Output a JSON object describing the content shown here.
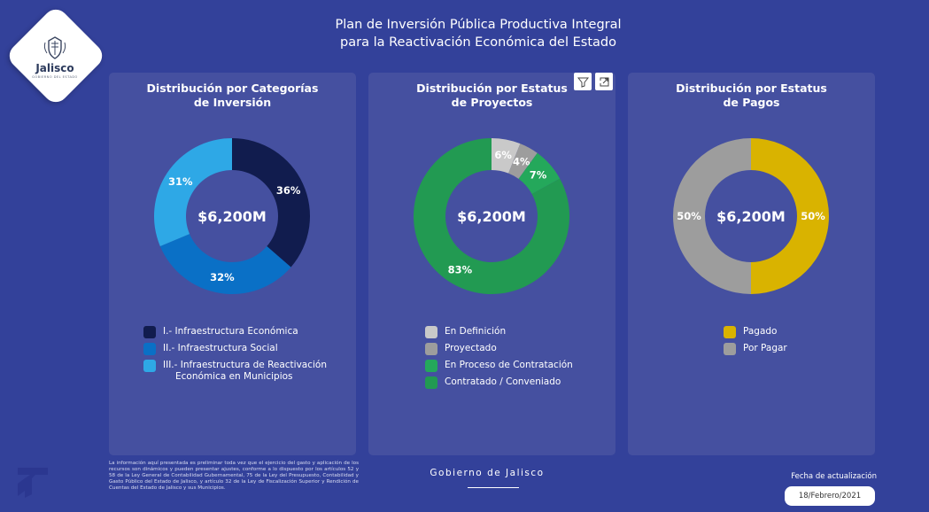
{
  "header": {
    "title_line1": "Plan de Inversión Pública Productiva Integral",
    "title_line2": "para la Reactivación Económica del Estado",
    "logo_text": "Jalisco",
    "logo_subtext": "GOBIERNO DEL ESTADO"
  },
  "panels": [
    {
      "title_line1": "Distribución por Categorías",
      "title_line2": "de Inversión",
      "center_value": "$6,200M",
      "legend": [
        {
          "label": "I.- Infraestructura Económica",
          "color": "#111c4e"
        },
        {
          "label": "II.- Infraestructura Social",
          "color": "#0a70c6"
        },
        {
          "label": "III.- Infraestructura de Reactivación",
          "label_line2": "Económica en Municipios",
          "color": "#2ea8e6"
        }
      ]
    },
    {
      "title_line1": "Distribución por Estatus",
      "title_line2": "de Proyectos",
      "center_value": "$6,200M",
      "legend": [
        {
          "label": "En Definición",
          "color": "#c9c9c9"
        },
        {
          "label": "Proyectado",
          "color": "#9d9d9d"
        },
        {
          "label": "En Proceso de Contratación",
          "color": "#24a85b"
        },
        {
          "label": "Contratado / Conveniado",
          "color": "#229a52"
        }
      ]
    },
    {
      "title_line1": "Distribución por Estatus",
      "title_line2": "de Pagos",
      "center_value": "$6,200M",
      "legend": [
        {
          "label": "Pagado",
          "color": "#d9b300"
        },
        {
          "label": "Por Pagar",
          "color": "#9d9d9d"
        }
      ]
    }
  ],
  "chart_data": [
    {
      "type": "pie",
      "donut": true,
      "categories": [
        "I.- Infraestructura Económica",
        "II.- Infraestructura Social",
        "III.- Infraestructura de Reactivación Económica en Municipios"
      ],
      "values": [
        36,
        32,
        31
      ],
      "labels": [
        "36%",
        "32%",
        "31%"
      ],
      "colors": [
        "#111c4e",
        "#0a70c6",
        "#2ea8e6"
      ]
    },
    {
      "type": "pie",
      "donut": true,
      "categories": [
        "En Definición",
        "Proyectado",
        "En Proceso de Contratación",
        "Contratado / Conveniado"
      ],
      "values": [
        6,
        4,
        7,
        83
      ],
      "labels": [
        "6%",
        "4%",
        "7%",
        "83%"
      ],
      "colors": [
        "#c9c9c9",
        "#9d9d9d",
        "#24a85b",
        "#229a52"
      ]
    },
    {
      "type": "pie",
      "donut": true,
      "categories": [
        "Pagado",
        "Por Pagar"
      ],
      "values": [
        50,
        50
      ],
      "labels": [
        "50%",
        "50%"
      ],
      "colors": [
        "#d9b300",
        "#9d9d9d"
      ]
    }
  ],
  "footer": {
    "disclaimer": "La información aquí presentada es preliminar toda vez que el ejercicio del gasto y aplicación de los recursos son dinámicos y pueden presentar ajustes, conforme a lo dispuesto por los artículos 52 y 58 de la Ley General de Contabilidad Gubernamental, 75 de la Ley del Presupuesto, Contabilidad y Gasto Público del Estado de Jalisco, y artículo 32 de la Ley de Fiscalización Superior y Rendición de Cuentas del Estado de Jalisco y sus Municipios.",
    "government": "Gobierno de Jalisco",
    "update_label": "Fecha de actualización",
    "update_date": "18/Febrero/2021"
  },
  "icons": {
    "filter": "filter-icon",
    "focus": "focus-mode-icon",
    "brand": "brand-mark-icon"
  }
}
